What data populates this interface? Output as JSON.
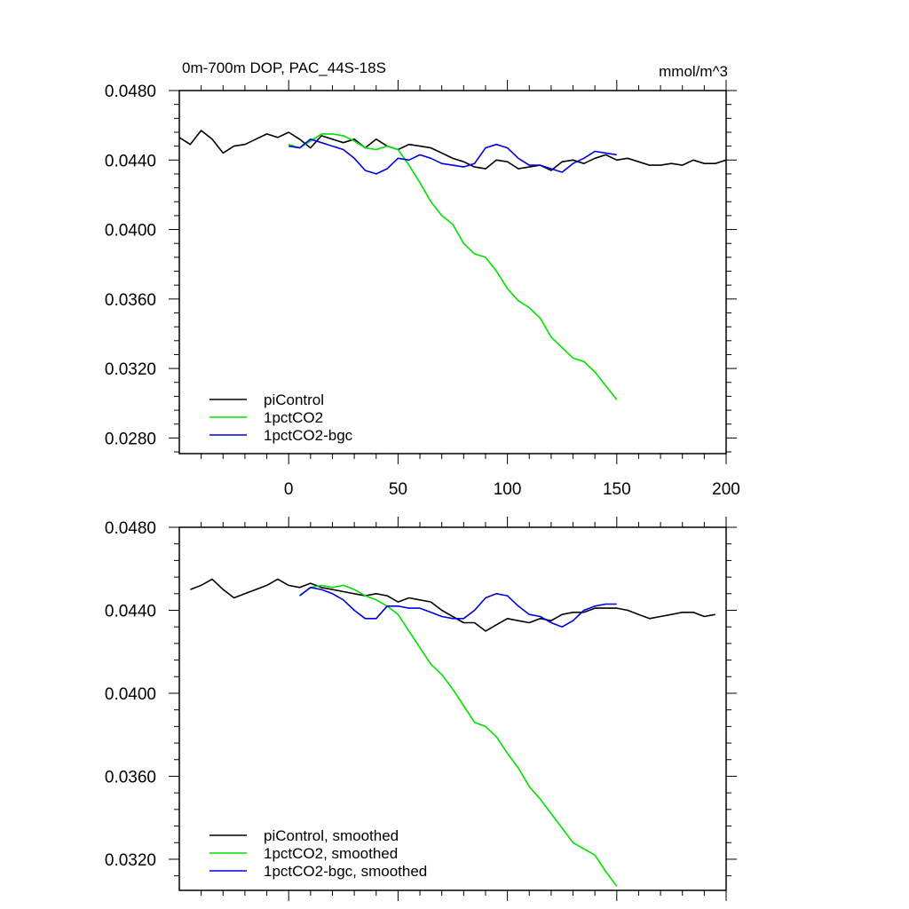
{
  "chart_data": [
    {
      "type": "line",
      "title": "0m-700m DOP, PAC_44S-18S",
      "units": "mmol/m^3",
      "xlim": [
        -50,
        200
      ],
      "ylim": [
        0.0271,
        0.048
      ],
      "xticks": [
        "0",
        "50",
        "100",
        "150",
        "200"
      ],
      "yticks": [
        "0.0480",
        "0.0440",
        "0.0400",
        "0.0360",
        "0.0320",
        "0.0280"
      ],
      "grid": false,
      "legend_position": "bottom-left",
      "series": [
        {
          "name": "piControl",
          "color": "#000000",
          "x": [
            -50,
            -45,
            -40,
            -35,
            -30,
            -25,
            -20,
            -15,
            -10,
            -5,
            0,
            5,
            10,
            15,
            20,
            25,
            30,
            35,
            40,
            45,
            50,
            55,
            60,
            65,
            70,
            75,
            80,
            85,
            90,
            95,
            100,
            105,
            110,
            115,
            120,
            125,
            130,
            135,
            140,
            145,
            150,
            155,
            160,
            165,
            170,
            175,
            180,
            185,
            190,
            195,
            200
          ],
          "y": [
            0.0453,
            0.0449,
            0.0457,
            0.0452,
            0.0444,
            0.0448,
            0.0449,
            0.0452,
            0.0455,
            0.0453,
            0.0456,
            0.0452,
            0.0447,
            0.0454,
            0.0452,
            0.045,
            0.0452,
            0.0447,
            0.0452,
            0.0448,
            0.0446,
            0.0449,
            0.0448,
            0.0447,
            0.0444,
            0.0441,
            0.0439,
            0.0436,
            0.0435,
            0.044,
            0.0439,
            0.0435,
            0.0436,
            0.0437,
            0.0434,
            0.0439,
            0.044,
            0.0438,
            0.0441,
            0.0443,
            0.044,
            0.0441,
            0.0439,
            0.0437,
            0.0437,
            0.0438,
            0.0437,
            0.044,
            0.0438,
            0.0438,
            0.044
          ]
        },
        {
          "name": "1pctCO2",
          "color": "#00e000",
          "x": [
            0,
            5,
            10,
            15,
            20,
            25,
            30,
            35,
            40,
            45,
            50,
            55,
            60,
            65,
            70,
            75,
            80,
            85,
            90,
            95,
            100,
            105,
            110,
            115,
            120,
            125,
            130,
            135,
            140,
            145,
            150
          ],
          "y": [
            0.0449,
            0.0447,
            0.0451,
            0.0455,
            0.0455,
            0.0454,
            0.0451,
            0.0447,
            0.0446,
            0.0448,
            0.0446,
            0.0437,
            0.0427,
            0.0416,
            0.0408,
            0.0403,
            0.0392,
            0.0386,
            0.0384,
            0.0376,
            0.0366,
            0.0359,
            0.0355,
            0.0349,
            0.0338,
            0.0332,
            0.0326,
            0.0324,
            0.0318,
            0.031,
            0.0302
          ]
        },
        {
          "name": "1pctCO2-bgc",
          "color": "#0000e0",
          "x": [
            0,
            5,
            10,
            15,
            20,
            25,
            30,
            35,
            40,
            45,
            50,
            55,
            60,
            65,
            70,
            75,
            80,
            85,
            90,
            95,
            100,
            105,
            110,
            115,
            120,
            125,
            130,
            135,
            140,
            145,
            150
          ],
          "y": [
            0.0448,
            0.0447,
            0.0452,
            0.045,
            0.0448,
            0.0446,
            0.0441,
            0.0434,
            0.0432,
            0.0435,
            0.0441,
            0.044,
            0.0443,
            0.0441,
            0.0438,
            0.0437,
            0.0436,
            0.0438,
            0.0447,
            0.0449,
            0.0447,
            0.0441,
            0.0437,
            0.0437,
            0.0435,
            0.0433,
            0.0438,
            0.0441,
            0.0445,
            0.0444,
            0.0443
          ]
        }
      ]
    },
    {
      "type": "line",
      "xlim": [
        -50,
        200
      ],
      "ylim": [
        0.0305,
        0.048
      ],
      "xticks": [],
      "yticks": [
        "0.0480",
        "0.0440",
        "0.0400",
        "0.0360",
        "0.0320"
      ],
      "grid": false,
      "legend_position": "bottom-left",
      "series": [
        {
          "name": "piControl, smoothed",
          "color": "#000000",
          "x": [
            -45,
            -40,
            -35,
            -30,
            -25,
            -20,
            -15,
            -10,
            -5,
            0,
            5,
            10,
            15,
            20,
            25,
            30,
            35,
            40,
            45,
            50,
            55,
            60,
            65,
            70,
            75,
            80,
            85,
            90,
            95,
            100,
            105,
            110,
            115,
            120,
            125,
            130,
            135,
            140,
            145,
            150,
            155,
            160,
            165,
            170,
            175,
            180,
            185,
            190,
            195
          ],
          "y": [
            0.045,
            0.0452,
            0.0455,
            0.045,
            0.0446,
            0.0448,
            0.045,
            0.0452,
            0.0455,
            0.0452,
            0.0451,
            0.0453,
            0.0451,
            0.045,
            0.0449,
            0.0448,
            0.0447,
            0.0448,
            0.0447,
            0.0444,
            0.0446,
            0.0445,
            0.0444,
            0.044,
            0.0437,
            0.0434,
            0.0434,
            0.043,
            0.0433,
            0.0436,
            0.0435,
            0.0434,
            0.0436,
            0.0435,
            0.0438,
            0.0439,
            0.0439,
            0.0441,
            0.0441,
            0.0441,
            0.044,
            0.0438,
            0.0436,
            0.0437,
            0.0438,
            0.0439,
            0.0439,
            0.0437,
            0.0438
          ]
        },
        {
          "name": "1pctCO2, smoothed",
          "color": "#00e000",
          "x": [
            5,
            10,
            15,
            20,
            25,
            30,
            35,
            40,
            45,
            50,
            55,
            60,
            65,
            70,
            75,
            80,
            85,
            90,
            95,
            100,
            105,
            110,
            115,
            120,
            125,
            130,
            135,
            140,
            145,
            150
          ],
          "y": [
            0.0447,
            0.0451,
            0.0452,
            0.0451,
            0.0452,
            0.045,
            0.0447,
            0.0445,
            0.0442,
            0.0438,
            0.043,
            0.0422,
            0.0414,
            0.0409,
            0.0402,
            0.0394,
            0.0386,
            0.0384,
            0.0379,
            0.0371,
            0.0364,
            0.0355,
            0.0349,
            0.0342,
            0.0335,
            0.0328,
            0.0325,
            0.0322,
            0.0314,
            0.0307
          ]
        },
        {
          "name": "1pctCO2-bgc, smoothed",
          "color": "#0000e0",
          "x": [
            5,
            10,
            15,
            20,
            25,
            30,
            35,
            40,
            45,
            50,
            55,
            60,
            65,
            70,
            75,
            80,
            85,
            90,
            95,
            100,
            105,
            110,
            115,
            120,
            125,
            130,
            135,
            140,
            145,
            150
          ],
          "y": [
            0.0447,
            0.0451,
            0.045,
            0.0448,
            0.0445,
            0.044,
            0.0436,
            0.0436,
            0.0442,
            0.0442,
            0.0441,
            0.0441,
            0.0439,
            0.0437,
            0.0436,
            0.0436,
            0.044,
            0.0446,
            0.0448,
            0.0447,
            0.0442,
            0.0438,
            0.0437,
            0.0434,
            0.0432,
            0.0435,
            0.044,
            0.0442,
            0.0443,
            0.0443
          ]
        }
      ]
    }
  ]
}
